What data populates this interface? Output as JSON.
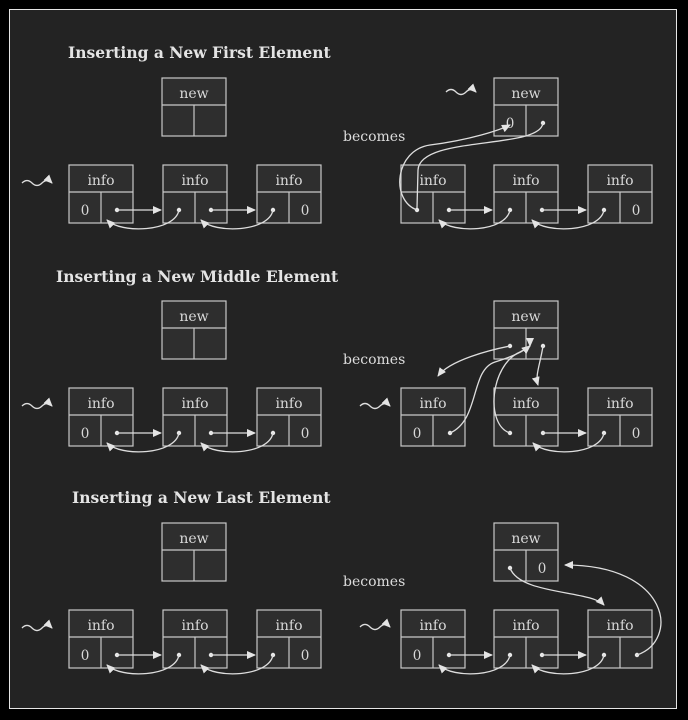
{
  "sections": [
    {
      "title": "Inserting a New First Element"
    },
    {
      "title": "Inserting a New Middle Element"
    },
    {
      "title": "Inserting a New Last Element"
    }
  ],
  "labels": {
    "info": "info",
    "new": "new",
    "null": "0",
    "becomes": "becomes"
  }
}
